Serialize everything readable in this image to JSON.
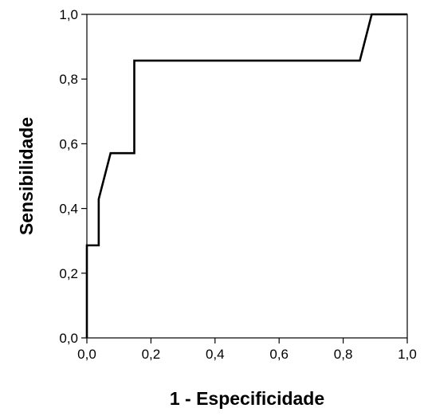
{
  "chart_data": {
    "type": "line",
    "title": "",
    "xlabel": "1 - Especificidade",
    "ylabel": "Sensibilidade",
    "xlim": [
      0,
      1
    ],
    "ylim": [
      0,
      1
    ],
    "x_ticks": [
      0,
      0.2,
      0.4,
      0.6,
      0.8,
      1.0
    ],
    "y_ticks": [
      0,
      0.2,
      0.4,
      0.6,
      0.8,
      1.0
    ],
    "x_tick_labels": [
      "0,0",
      "0,2",
      "0,4",
      "0,6",
      "0,8",
      "1,0"
    ],
    "y_tick_labels": [
      "0,0",
      "0,2",
      "0,4",
      "0,6",
      "0,8",
      "1,0"
    ],
    "grid": false,
    "legend": "none",
    "line_color": "#000000",
    "series": [
      {
        "x": [
          0,
          0,
          0.037,
          0.037,
          0.074,
          0.148,
          0.148,
          0.852,
          0.889,
          1.0
        ],
        "y": [
          0,
          0.286,
          0.286,
          0.429,
          0.571,
          0.571,
          0.857,
          0.857,
          1.0,
          1.0
        ]
      }
    ]
  }
}
